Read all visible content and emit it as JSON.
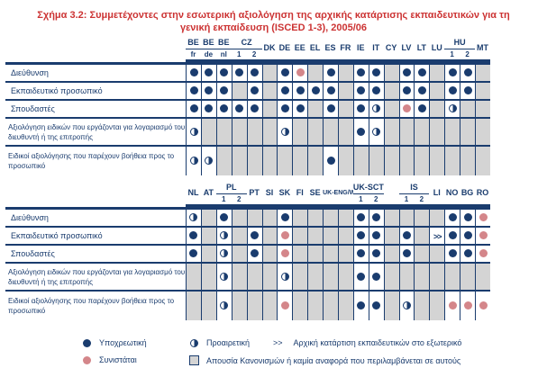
{
  "title": {
    "line1": "Σχήμα 3.2: Συμμετέχοντες στην εσωτερική αξιολόγηση της αρχικής κατάρτισης εκπαιδευτικών για τη",
    "line2": "γενική εκπαίδευση (ISCED 1-3), 2005/06"
  },
  "colors": {
    "navy": "#1a3c6e",
    "pink": "#d4868a",
    "gray": "#d4d4d4",
    "title_red": "#cc3333"
  },
  "legend": {
    "mandatory": "Υποχρεωτική",
    "optional": "Προαιρετική",
    "abroad_symbol": ">>",
    "abroad": "Αρχική κατάρτιση εκπαιδευτικών στο εξωτερικό",
    "recommended": "Συνιστάται",
    "none": "Απουσία Κανονισμών ή καμία αναφορά που περιλαμβάνεται σε αυτούς"
  },
  "tables": [
    {
      "top": 41,
      "label_width": 200,
      "col_width": 16.9,
      "header_heights": [
        14,
        11
      ],
      "row_heights": [
        20,
        20,
        20,
        31,
        34
      ],
      "groups": [
        {
          "label": "BE",
          "sub": [
            "fr"
          ]
        },
        {
          "label": "BE",
          "sub": [
            "de"
          ]
        },
        {
          "label": "BE",
          "sub": [
            "nl"
          ]
        },
        {
          "label": "CZ",
          "sub": [
            "1",
            "2"
          ]
        },
        {
          "label": "DK",
          "sub": [
            ""
          ]
        },
        {
          "label": "DE",
          "sub": [
            ""
          ]
        },
        {
          "label": "EE",
          "sub": [
            ""
          ]
        },
        {
          "label": "EL",
          "sub": [
            ""
          ]
        },
        {
          "label": "ES",
          "sub": [
            ""
          ]
        },
        {
          "label": "FR",
          "sub": [
            ""
          ]
        },
        {
          "label": "IE",
          "sub": [
            ""
          ]
        },
        {
          "label": "IT",
          "sub": [
            ""
          ]
        },
        {
          "label": "CY",
          "sub": [
            ""
          ]
        },
        {
          "label": "LV",
          "sub": [
            ""
          ]
        },
        {
          "label": "LT",
          "sub": [
            ""
          ]
        },
        {
          "label": "LU",
          "sub": [
            ""
          ]
        },
        {
          "label": "HU",
          "sub": [
            "1",
            "2"
          ]
        },
        {
          "label": "MT",
          "sub": [
            ""
          ]
        }
      ],
      "rows": [
        {
          "label": "Διεύθυνση",
          "cells": [
            "M",
            "M",
            "M",
            "M",
            "M",
            "G",
            "M",
            "R",
            "G",
            "M",
            "G",
            "M",
            "M",
            "G",
            "M",
            "M",
            "G",
            "M",
            "M",
            "G"
          ]
        },
        {
          "label": "Εκπαιδευτικό προσωπικό",
          "cells": [
            "M",
            "M",
            "M",
            "G",
            "M",
            "G",
            "M",
            "M",
            "M",
            "M",
            "G",
            "M",
            "M",
            "G",
            "M",
            "M",
            "G",
            "M",
            "M",
            "G"
          ]
        },
        {
          "label": "Σπουδαστές",
          "cells": [
            "M",
            "M",
            "M",
            "M",
            "M",
            "G",
            "M",
            "M",
            "G",
            "M",
            "G",
            "M",
            "O",
            "G",
            "R",
            "M",
            "G",
            "O",
            "G",
            "G"
          ]
        },
        {
          "label": "Αξιολόγηση ειδικών που εργάζονται για λογαριασμό του διευθυντή ή της επιτροπής",
          "cells": [
            "O",
            "G",
            "G",
            "G",
            "G",
            "G",
            "O",
            "G",
            "G",
            "G",
            "G",
            "M",
            "O",
            "G",
            "G",
            "G",
            "G",
            "G",
            "G",
            "G"
          ]
        },
        {
          "label": "Ειδικοί αξιολόγησης που παρέχουν βοήθεια προς το προσωπικό",
          "cells": [
            "O",
            "O",
            "G",
            "G",
            "G",
            "G",
            "G",
            "G",
            "G",
            "M",
            "G",
            "G",
            "G",
            "G",
            "G",
            "G",
            "G",
            "G",
            "G",
            "G"
          ]
        }
      ]
    },
    {
      "top": 202,
      "label_width": 200,
      "col_width": 16.9,
      "header_heights": [
        14,
        12
      ],
      "row_heights": [
        20,
        20,
        20,
        31,
        34
      ],
      "groups": [
        {
          "label": "NL",
          "sub": [
            ""
          ]
        },
        {
          "label": "AT",
          "sub": [
            ""
          ]
        },
        {
          "label": "PL",
          "sub": [
            "1",
            "2"
          ]
        },
        {
          "label": "PT",
          "sub": [
            ""
          ]
        },
        {
          "label": "SI",
          "sub": [
            ""
          ]
        },
        {
          "label": "SK",
          "sub": [
            ""
          ]
        },
        {
          "label": "FI",
          "sub": [
            ""
          ]
        },
        {
          "label": "SE",
          "sub": [
            ""
          ]
        },
        {
          "label": "UK-ENG/WLS/NIR",
          "sub": [
            ""
          ],
          "span_cols": 2,
          "twoline": true
        },
        {
          "label": "UK-SCT",
          "sub": [
            "1",
            "2"
          ]
        },
        {
          "label": "IS",
          "sub": [
            "1",
            "2"
          ],
          "pad_before": 1
        },
        {
          "label": "LI",
          "sub": [
            ""
          ]
        },
        {
          "label": "NO",
          "sub": [
            ""
          ]
        },
        {
          "label": "BG",
          "sub": [
            ""
          ]
        },
        {
          "label": "RO",
          "sub": [
            ""
          ]
        }
      ],
      "rows": [
        {
          "label": "Διεύθυνση",
          "cells": [
            "O",
            "G",
            "M",
            "G",
            "G",
            "G",
            "M",
            "G",
            "G",
            "G",
            "G",
            "M",
            "M",
            "G",
            "G",
            "G",
            "G",
            "M",
            "M",
            "R"
          ]
        },
        {
          "label": "Εκπαιδευτικό προσωπικό",
          "cells": [
            "M",
            "G",
            "O",
            "G",
            "M",
            "G",
            "R",
            "G",
            "G",
            "G",
            "G",
            "M",
            "M",
            "G",
            "M",
            "G",
            "A",
            "M",
            "M",
            "R"
          ]
        },
        {
          "label": "Σπουδαστές",
          "cells": [
            "M",
            "G",
            "O",
            "G",
            "M",
            "G",
            "R",
            "G",
            "G",
            "G",
            "G",
            "M",
            "M",
            "G",
            "M",
            "G",
            "G",
            "M",
            "M",
            "R"
          ]
        },
        {
          "label": "Αξιολόγηση ειδικών που εργάζονται για λογαριασμό του διευθυντή ή της επιτροπής",
          "cells": [
            "G",
            "G",
            "O",
            "G",
            "G",
            "G",
            "O",
            "G",
            "G",
            "G",
            "G",
            "M",
            "M",
            "G",
            "G",
            "G",
            "G",
            "G",
            "G",
            "G"
          ]
        },
        {
          "label": "Ειδικοί αξιολόγησης που παρέχουν βοήθεια προς το προσωπικό",
          "cells": [
            "G",
            "G",
            "O",
            "G",
            "G",
            "G",
            "R",
            "G",
            "G",
            "G",
            "G",
            "M",
            "M",
            "G",
            "O",
            "G",
            "G",
            "R",
            "R",
            "R"
          ]
        }
      ]
    }
  ]
}
